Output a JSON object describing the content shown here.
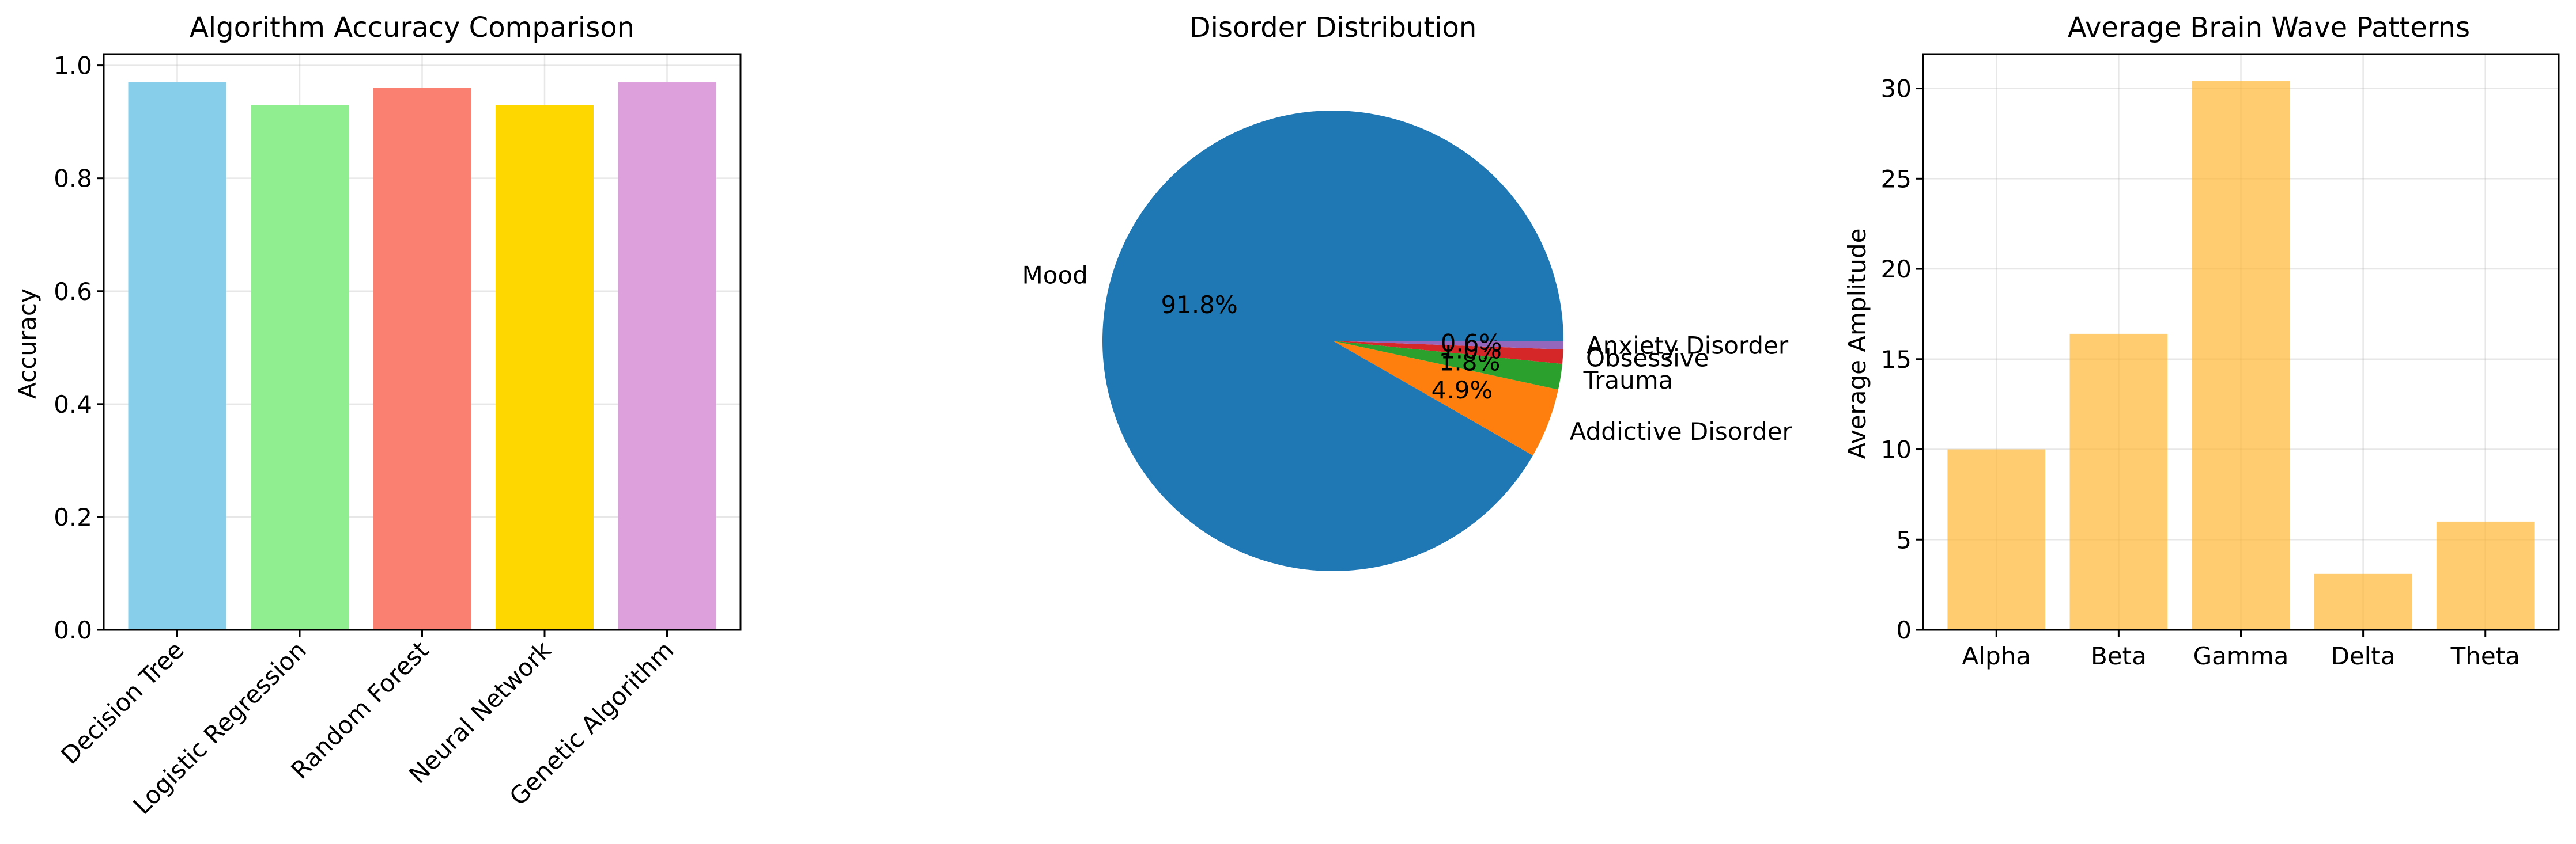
{
  "chart_data": [
    {
      "type": "bar",
      "title": "Algorithm Accuracy Comparison",
      "xlabel": "",
      "ylabel": "Accuracy",
      "categories": [
        "Decision Tree",
        "Logistic Regression",
        "Random Forest",
        "Neural Network",
        "Genetic Algorithm"
      ],
      "values": [
        0.97,
        0.93,
        0.96,
        0.93,
        0.97
      ],
      "colors": [
        "#87ceeb",
        "#90ee90",
        "#fa8072",
        "#ffd700",
        "#dda0dd"
      ],
      "ylim": [
        0,
        1.02
      ],
      "yticks": [
        "0.0",
        "0.2",
        "0.4",
        "0.6",
        "0.8",
        "1.0"
      ],
      "grid": true,
      "x_tick_rotation": "45 degrees"
    },
    {
      "type": "pie",
      "title": "Disorder Distribution",
      "categories": [
        "Mood",
        "Addictive Disorder",
        "Trauma",
        "Obsessive",
        "Anxiety Disorder"
      ],
      "values": [
        91.8,
        4.9,
        1.8,
        1.0,
        0.6
      ],
      "percent_labels": [
        "91.8%",
        "4.9%",
        "1.8%",
        "1.0%",
        "0.6%"
      ],
      "colors": [
        "#1f77b4",
        "#ff7f0e",
        "#2ca02c",
        "#d62728",
        "#9467bd"
      ]
    },
    {
      "type": "bar",
      "title": "Average Brain Wave Patterns",
      "xlabel": "",
      "ylabel": "Average Amplitude",
      "categories": [
        "Alpha",
        "Beta",
        "Gamma",
        "Delta",
        "Theta"
      ],
      "values": [
        10.0,
        16.4,
        30.4,
        3.1,
        6.0
      ],
      "color": "#ffb733",
      "ylim": [
        0,
        31.9
      ],
      "yticks": [
        "0",
        "5",
        "10",
        "15",
        "20",
        "25",
        "30"
      ],
      "grid": true
    }
  ]
}
